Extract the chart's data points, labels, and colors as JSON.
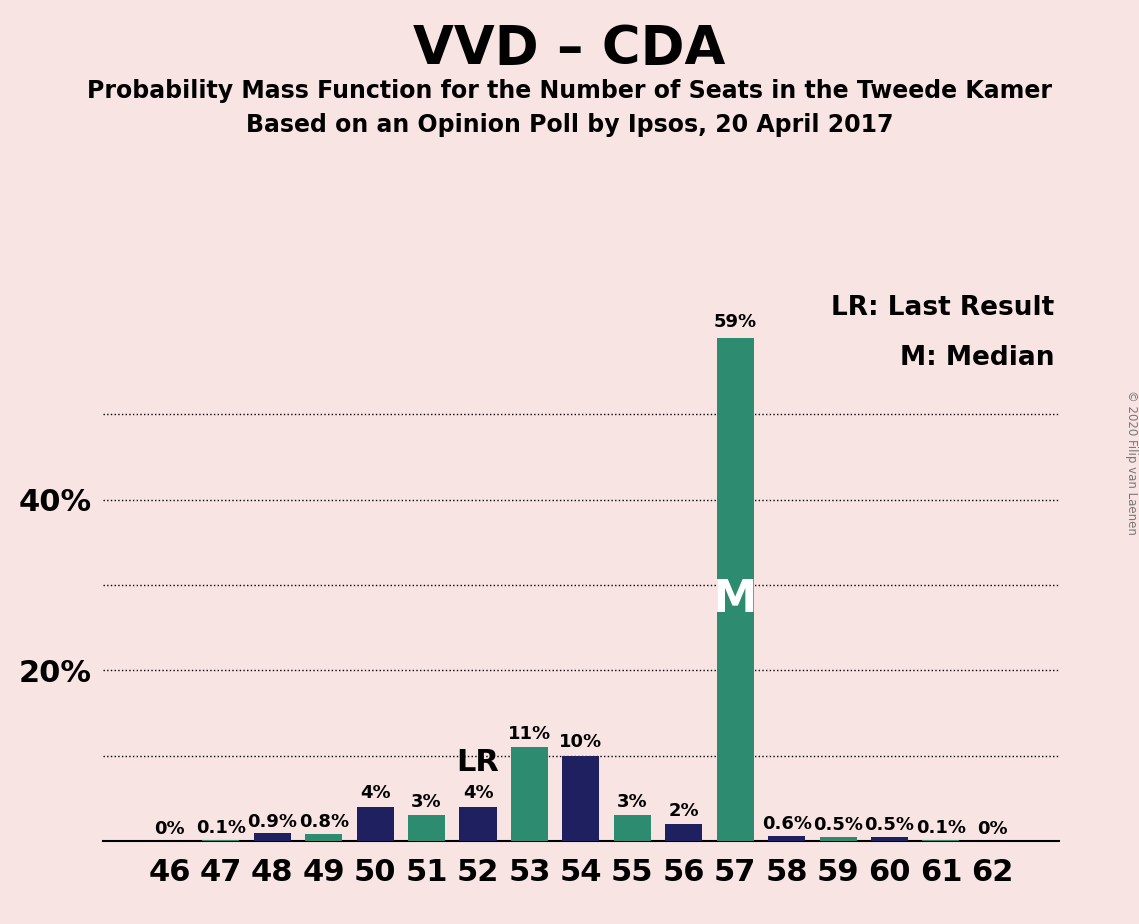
{
  "title": "VVD – CDA",
  "subtitle1": "Probability Mass Function for the Number of Seats in the Tweede Kamer",
  "subtitle2": "Based on an Opinion Poll by Ipsos, 20 April 2017",
  "copyright": "© 2020 Filip van Laenen",
  "seats": [
    46,
    47,
    48,
    49,
    50,
    51,
    52,
    53,
    54,
    55,
    56,
    57,
    58,
    59,
    60,
    61,
    62
  ],
  "values": [
    0.0,
    0.1,
    0.9,
    0.8,
    4.0,
    3.0,
    4.0,
    11.0,
    10.0,
    3.0,
    2.0,
    59.0,
    0.6,
    0.5,
    0.5,
    0.1,
    0.0
  ],
  "labels": [
    "0%",
    "0.1%",
    "0.9%",
    "0.8%",
    "4%",
    "3%",
    "4%",
    "11%",
    "10%",
    "3%",
    "2%",
    "59%",
    "0.6%",
    "0.5%",
    "0.5%",
    "0.1%",
    "0%"
  ],
  "colors": [
    "#1f2060",
    "#2d8b6f",
    "#1f2060",
    "#2d8b6f",
    "#1f2060",
    "#2d8b6f",
    "#1f2060",
    "#2d8b6f",
    "#1f2060",
    "#2d8b6f",
    "#1f2060",
    "#2d8b6f",
    "#1f2060",
    "#2d8b6f",
    "#1f2060",
    "#2d8b6f",
    "#1f2060"
  ],
  "lr_seat": 52,
  "median_seat": 57,
  "background_color": "#f9e4e4",
  "grid_positions": [
    10,
    20,
    30,
    40,
    50
  ],
  "ylim": [
    0,
    65
  ],
  "title_fontsize": 38,
  "subtitle_fontsize": 17,
  "label_fontsize": 13,
  "tick_fontsize": 22,
  "legend_fontsize": 19
}
